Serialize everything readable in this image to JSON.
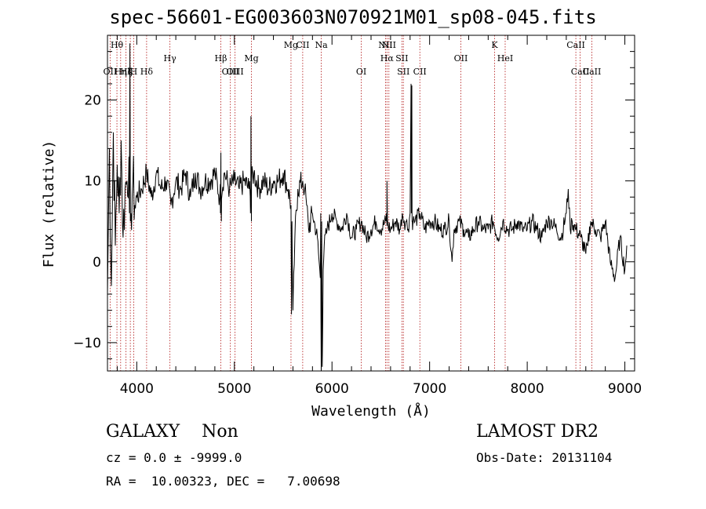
{
  "title": "spec-56601-EG003603N070921M01_sp08-045.fits",
  "chart_data": {
    "type": "line",
    "xlabel": "Wavelength (Å)",
    "ylabel": "Flux (relative)",
    "xlim": [
      3700,
      9100
    ],
    "ylim": [
      -13.5,
      28
    ],
    "xticks": [
      4000,
      5000,
      6000,
      7000,
      8000,
      9000
    ],
    "yticks": [
      -10,
      0,
      10,
      20
    ],
    "grid": false,
    "series": [
      {
        "x": [
          3700,
          3720,
          3740,
          3760,
          3780,
          3800,
          3820,
          3840,
          3860,
          3880,
          3900,
          3920,
          3940,
          3960,
          3980,
          4000,
          4050,
          4100,
          4150,
          4200,
          4250,
          4300,
          4350,
          4400,
          4450,
          4500,
          4550,
          4600,
          4650,
          4700,
          4750,
          4800,
          4850,
          4900,
          4950,
          5000,
          5050,
          5100,
          5150,
          5200,
          5250,
          5300,
          5350,
          5400,
          5450,
          5500,
          5550,
          5580,
          5600,
          5620,
          5650,
          5700,
          5720,
          5740,
          5760,
          5800,
          5850,
          5880,
          5900,
          5910,
          5920,
          5950,
          6000,
          6050,
          6100,
          6150,
          6200,
          6250,
          6300,
          6350,
          6400,
          6450,
          6500,
          6550,
          6600,
          6650,
          6700,
          6720,
          6740,
          6760,
          6780,
          6800,
          6810,
          6820,
          6830,
          6850,
          6900,
          6950,
          7000,
          7050,
          7100,
          7150,
          7200,
          7230,
          7250,
          7300,
          7350,
          7400,
          7450,
          7500,
          7550,
          7600,
          7650,
          7700,
          7750,
          7800,
          7850,
          7900,
          7950,
          8000,
          8050,
          8100,
          8150,
          8200,
          8250,
          8300,
          8350,
          8400,
          8420,
          8440,
          8460,
          8500,
          8550,
          8600,
          8620,
          8650,
          8700,
          8750,
          8800,
          8850,
          8900,
          8950,
          9000,
          9020
        ],
        "y": [
          -4,
          14,
          -3,
          16,
          2,
          12,
          6,
          15,
          3,
          9,
          10,
          13,
          6,
          10,
          7,
          8,
          9,
          11,
          8,
          11,
          9,
          10,
          7,
          10,
          9,
          11,
          8,
          11,
          9,
          10,
          10,
          11,
          8,
          11,
          9,
          10,
          9,
          10,
          9,
          11,
          9,
          10,
          9,
          10,
          10,
          11,
          9,
          7,
          -6,
          3,
          9,
          10,
          9,
          7,
          4,
          6,
          3,
          -2,
          -13,
          -1,
          2,
          4,
          6,
          5,
          4,
          6,
          3,
          4,
          5,
          3,
          4,
          5,
          4,
          5,
          4,
          5,
          4,
          6,
          5,
          5,
          4,
          6,
          22,
          5,
          5,
          5,
          6,
          4,
          5,
          5,
          4,
          4,
          5,
          0,
          4,
          5,
          4,
          3,
          4,
          5,
          4,
          4,
          5,
          3,
          5,
          4,
          4,
          5,
          4,
          4,
          5,
          4,
          3,
          5,
          5,
          4,
          3,
          6,
          9,
          4,
          5,
          4,
          3,
          1,
          2,
          5,
          4,
          3,
          5,
          0,
          -2,
          3,
          -1,
          2
        ]
      }
    ],
    "emission_peaks": [
      {
        "x": 3930,
        "y": 27
      },
      {
        "x": 4862,
        "y": 13.5
      },
      {
        "x": 5170,
        "y": 18
      },
      {
        "x": 6563,
        "y": 10
      },
      {
        "x": 6818,
        "y": 21.8
      }
    ],
    "absorption_dips": [
      {
        "x": 5585,
        "y": -6.5
      },
      {
        "x": 5890,
        "y": -13.5
      }
    ],
    "line_markers": {
      "color": "#b01010",
      "lines": [
        {
          "x": 3727,
          "label": "OII",
          "row": 2
        },
        {
          "x": 3797,
          "label": "Hθ",
          "row": 0
        },
        {
          "x": 3835,
          "label": "Hη",
          "row": 2
        },
        {
          "x": 3890,
          "label": "Hζ",
          "row": 2
        },
        {
          "x": 3934,
          "label": "K",
          "row": 2
        },
        {
          "x": 3969,
          "label": "H",
          "row": 2
        },
        {
          "x": 4101,
          "label": "Hδ",
          "row": 2
        },
        {
          "x": 4340,
          "label": "Hγ",
          "row": 1
        },
        {
          "x": 4861,
          "label": "Hβ",
          "row": 1
        },
        {
          "x": 4959,
          "label": "OIII",
          "row": 2
        },
        {
          "x": 5007,
          "label": "OIII",
          "row": 2
        },
        {
          "x": 5175,
          "label": "Mg",
          "row": 1
        },
        {
          "x": 5580,
          "label": "Mg",
          "row": 0
        },
        {
          "x": 5700,
          "label": "CII",
          "row": 0
        },
        {
          "x": 5890,
          "label": "Na",
          "row": 0
        },
        {
          "x": 6300,
          "label": "OI",
          "row": 2
        },
        {
          "x": 6548,
          "label": "NII",
          "row": 0
        },
        {
          "x": 6563,
          "label": "Hα",
          "row": 1
        },
        {
          "x": 6583,
          "label": "NII",
          "row": 0
        },
        {
          "x": 6716,
          "label": "SII",
          "row": 1
        },
        {
          "x": 6731,
          "label": "SII",
          "row": 2
        },
        {
          "x": 6900,
          "label": "CII",
          "row": 2
        },
        {
          "x": 7320,
          "label": "OII",
          "row": 1
        },
        {
          "x": 7665,
          "label": "K",
          "row": 0
        },
        {
          "x": 7774,
          "label": "HeI",
          "row": 1
        },
        {
          "x": 8498,
          "label": "CaII",
          "row": 0
        },
        {
          "x": 8542,
          "label": "CaII",
          "row": 2
        },
        {
          "x": 8662,
          "label": "CaII",
          "row": 2
        }
      ]
    }
  },
  "info": {
    "class_line": "GALAXY    Non",
    "survey": "LAMOST DR2",
    "cz_line": "cz = 0.0 ± -9999.0",
    "obs_date": "Obs-Date: 20131104",
    "coords_line": "RA =  10.00323, DEC =   7.00698"
  }
}
